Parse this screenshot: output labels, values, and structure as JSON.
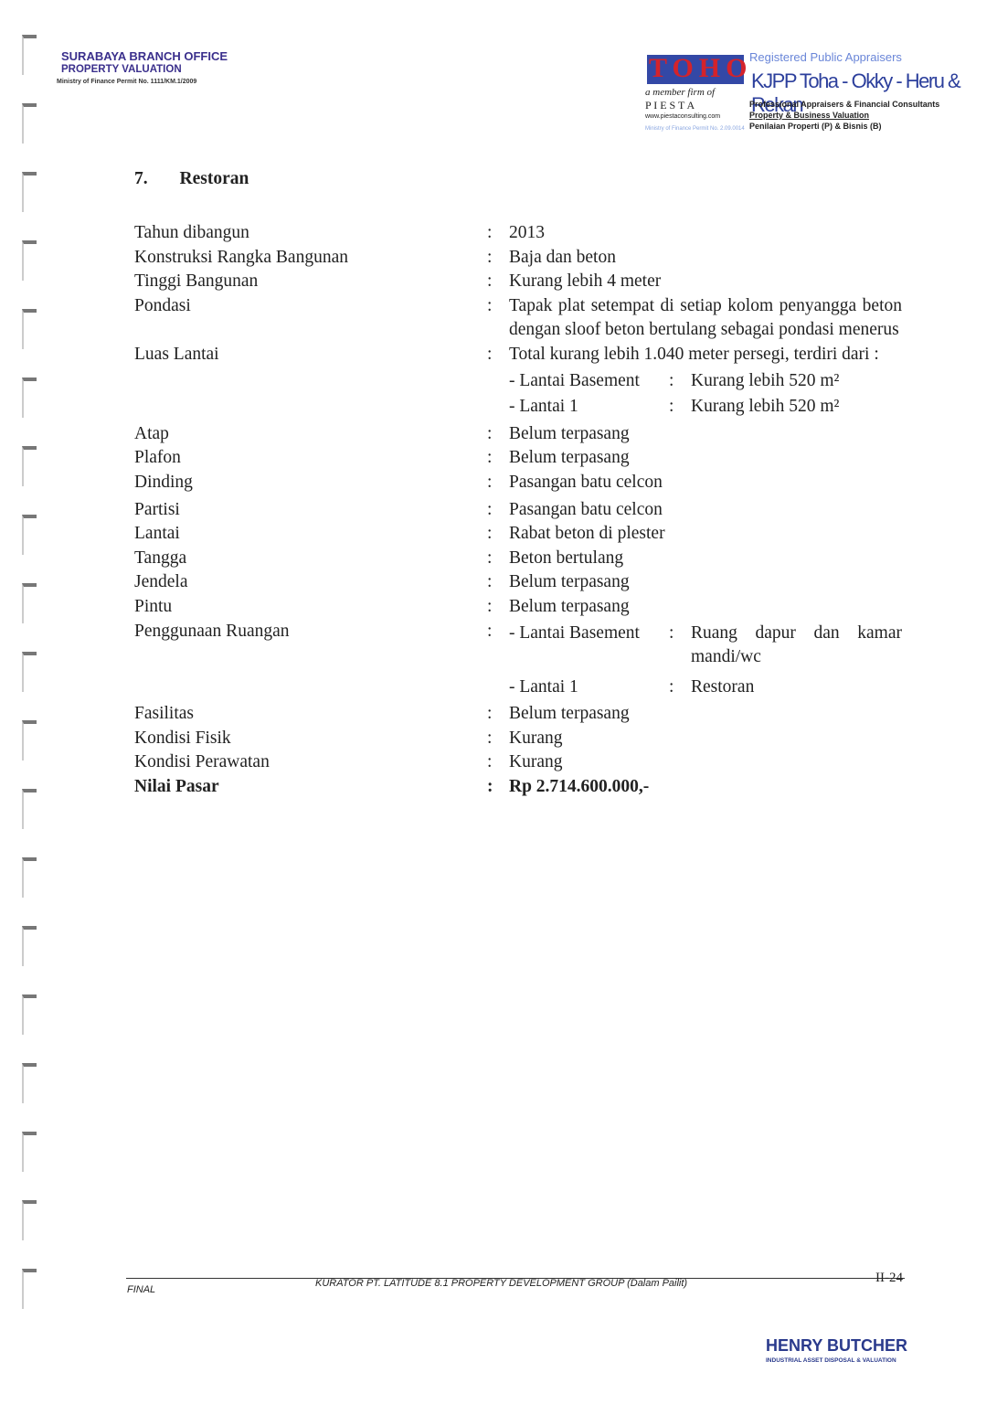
{
  "header": {
    "office": "SURABAYA BRANCH OFFICE",
    "dept": "PROPERTY VALUATION",
    "permit": "Ministry of Finance Permit No. 1111/KM.1/2009"
  },
  "logo": {
    "toho": "TOHO",
    "member": "a member firm of",
    "piesta": "P I E S T A",
    "web": "www.piestaconsulting.com",
    "permit": "Ministry of Finance Permit No. 2.09.0014",
    "registered": "Registered Public Appraisers",
    "firm": "KJPP Toha - Okky - Heru & Rekan",
    "line1": "Professional Appraisers & Financial Consultants",
    "line2": "Property & Business Valuation",
    "line3": "Penilaian Properti (P) & Bisnis (B)"
  },
  "section": {
    "number": "7.",
    "title": "Restoran"
  },
  "separator": ":",
  "rows": [
    {
      "label": "Tahun dibangun",
      "value": "2013"
    },
    {
      "label": "Konstruksi Rangka Bangunan",
      "value": "Baja dan beton"
    },
    {
      "label": "Tinggi Bangunan",
      "value": "Kurang lebih 4 meter"
    },
    {
      "label": "Pondasi",
      "value": "Tapak plat setempat di setiap kolom penyangga beton dengan sloof beton bertulang sebagai pondasi menerus"
    },
    {
      "label": "Luas Lantai",
      "value": "Total kurang lebih 1.040 meter persegi, terdiri dari :",
      "subs": [
        {
          "label": "- Lantai Basement",
          "value": "Kurang lebih 520 m²"
        },
        {
          "label": "- Lantai 1",
          "value": "Kurang lebih 520 m²"
        }
      ]
    },
    {
      "label": "Atap",
      "value": "Belum terpasang"
    },
    {
      "label": "Plafon",
      "value": "Belum terpasang"
    },
    {
      "label": "Dinding",
      "value": "Pasangan batu celcon"
    },
    {
      "label": "Partisi",
      "value": "Pasangan batu celcon"
    },
    {
      "label": "Lantai",
      "value": "Rabat beton di plester"
    },
    {
      "label": "Tangga",
      "value": "Beton bertulang"
    },
    {
      "label": "Jendela",
      "value": "Belum terpasang"
    },
    {
      "label": "Pintu",
      "value": "Belum terpasang"
    },
    {
      "label": "Penggunaan Ruangan",
      "subs": [
        {
          "label": "- Lantai Basement",
          "value": "Ruang dapur dan kamar mandi/wc"
        },
        {
          "label": "- Lantai 1",
          "value": "Restoran"
        }
      ]
    },
    {
      "label": "Fasilitas",
      "value": "Belum terpasang"
    },
    {
      "label": "Kondisi Fisik",
      "value": "Kurang"
    },
    {
      "label": "Kondisi Perawatan",
      "value": "Kurang"
    },
    {
      "label": "Nilai Pasar",
      "value": "Rp 2.714.600.000,-"
    }
  ],
  "footer": {
    "status": "FINAL",
    "client": "KURATOR PT. LATITUDE 8.1 PROPERTY DEVELOPMENT GROUP (Dalam Pailit)",
    "page": "II-24",
    "brand": "HENRY BUTCHER",
    "tagline": "INDUSTRIAL ASSET DISPOSAL & VALUATION"
  }
}
